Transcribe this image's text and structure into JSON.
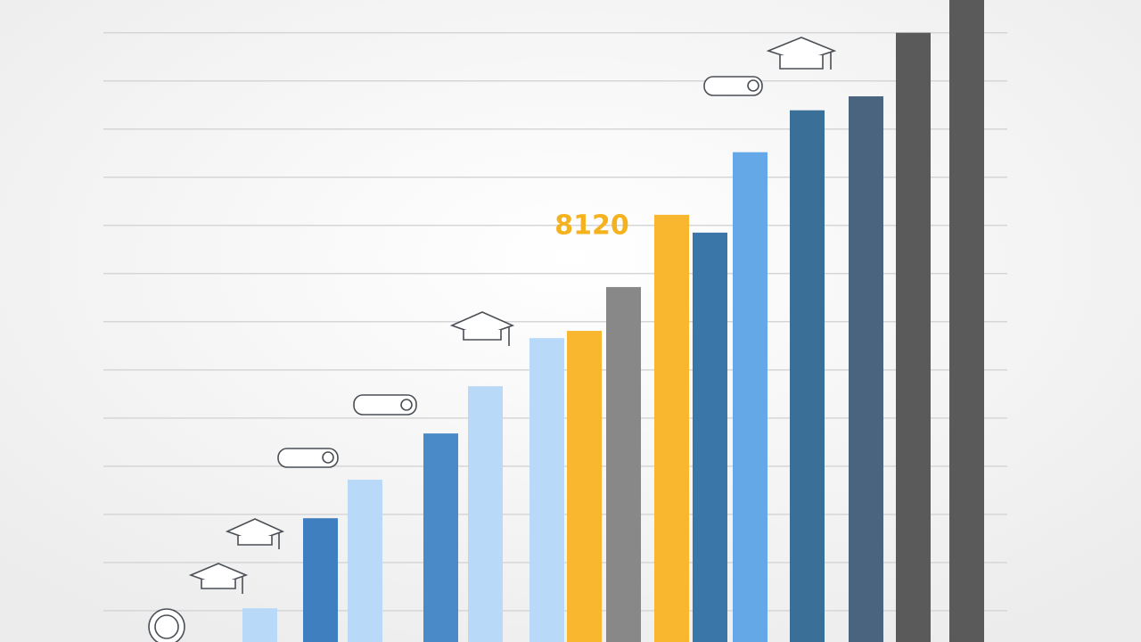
{
  "chart_data": {
    "type": "bar",
    "annotation": "8120",
    "annotation_color": "#f5b21f",
    "categories": [
      null,
      null,
      null,
      null,
      null,
      null,
      null,
      null,
      null,
      null,
      null,
      null,
      null,
      null,
      null
    ],
    "values": [
      7,
      25.7,
      33.7,
      43.3,
      53.1,
      63.1,
      64.6,
      73.7,
      88.7,
      85,
      101.7,
      110.4,
      113.3,
      126.5,
      133.3
    ],
    "colors": [
      "#b9d9f9",
      "#3f7ebf",
      "#b9d9f9",
      "#4a8ac8",
      "#b9d9f9",
      "#b9d9f9",
      "#f9b730",
      "#888888",
      "#f9b730",
      "#3a77a8",
      "#64a8e8",
      "#3a6f98",
      "#4a6480",
      "#5a5a5a",
      "#5a5a5a"
    ],
    "ylim": [
      0,
      133.3
    ],
    "yticks": [
      6.5,
      16.5,
      26.5,
      36.5,
      46.5,
      56.5,
      66.5,
      76.5,
      86.5,
      96.5,
      106.5,
      116.5,
      126.5
    ],
    "grid": true
  }
}
